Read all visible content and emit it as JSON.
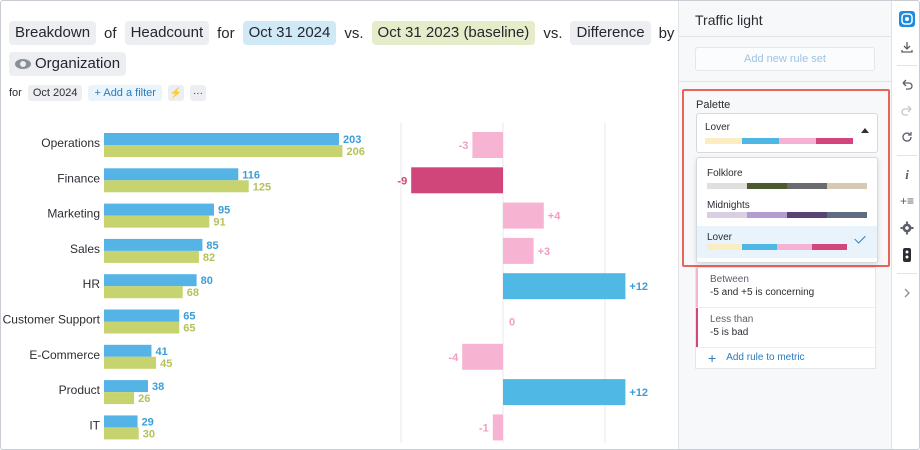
{
  "header": {
    "breakdown": "Breakdown",
    "of": "of",
    "metric": "Headcount",
    "for": "for",
    "date1": "Oct 31 2024",
    "vs1": "vs.",
    "date2": "Oct 31 2023 (baseline)",
    "vs2": "vs.",
    "difference": "Difference",
    "by": "by",
    "group": "Organization"
  },
  "filters": {
    "for_label": "for",
    "period": "Oct 2024",
    "add_filter": "+ Add a filter",
    "lightning": "⚡",
    "more": "···"
  },
  "chart_data": {
    "type": "bar",
    "categories": [
      "Operations",
      "Finance",
      "Marketing",
      "Sales",
      "HR",
      "Customer Support",
      "E-Commerce",
      "Product",
      "IT"
    ],
    "series": [
      {
        "name": "Oct 31 2024",
        "values": [
          203,
          116,
          95,
          85,
          80,
          65,
          41,
          38,
          29
        ],
        "color": "#56b3e5"
      },
      {
        "name": "Oct 31 2023 (baseline)",
        "values": [
          206,
          125,
          91,
          82,
          68,
          65,
          45,
          26,
          30
        ],
        "color": "#c6d36f"
      }
    ],
    "difference": {
      "values": [
        -3,
        -9,
        4,
        3,
        12,
        0,
        -4,
        12,
        -1
      ],
      "labels": [
        "-3",
        "-9",
        "+4",
        "+3",
        "+12",
        "0",
        "-4",
        "+12",
        "-1"
      ],
      "colors": {
        "bad": "#d0467a",
        "concerning": "#f7b3d2",
        "good": "#4fb8e4"
      }
    }
  },
  "panel": {
    "title": "Traffic light",
    "add_rule_set": "Add new rule set",
    "palette_label": "Palette",
    "selected_palette": "Lover",
    "options": [
      {
        "name": "Folklore",
        "swatches": [
          "#dfdfdf",
          "#4a5a2e",
          "#6a6b6f",
          "#d7c9b1"
        ]
      },
      {
        "name": "Midnights",
        "swatches": [
          "#d9cfe3",
          "#b39cd0",
          "#5a4272",
          "#5e6d84"
        ]
      },
      {
        "name": "Lover",
        "swatches": [
          "#fbecc1",
          "#4db6e3",
          "#f6b2d2",
          "#d2467d"
        ]
      }
    ],
    "rules": [
      {
        "line1": "Between",
        "line2": "-5 and +5  is concerning",
        "color": "#f7b3d2"
      },
      {
        "line1": "Less than",
        "line2": "-5  is bad",
        "color": "#d2467d"
      }
    ],
    "add_rule": "Add rule to metric"
  },
  "rail": {
    "icons": [
      "traffic-light-icon",
      "download-icon",
      "undo-icon",
      "redo-icon",
      "refresh-icon",
      "info-icon",
      "add-metric-icon",
      "settings-icon",
      "traffic-icon",
      "chevron-right-icon"
    ]
  }
}
